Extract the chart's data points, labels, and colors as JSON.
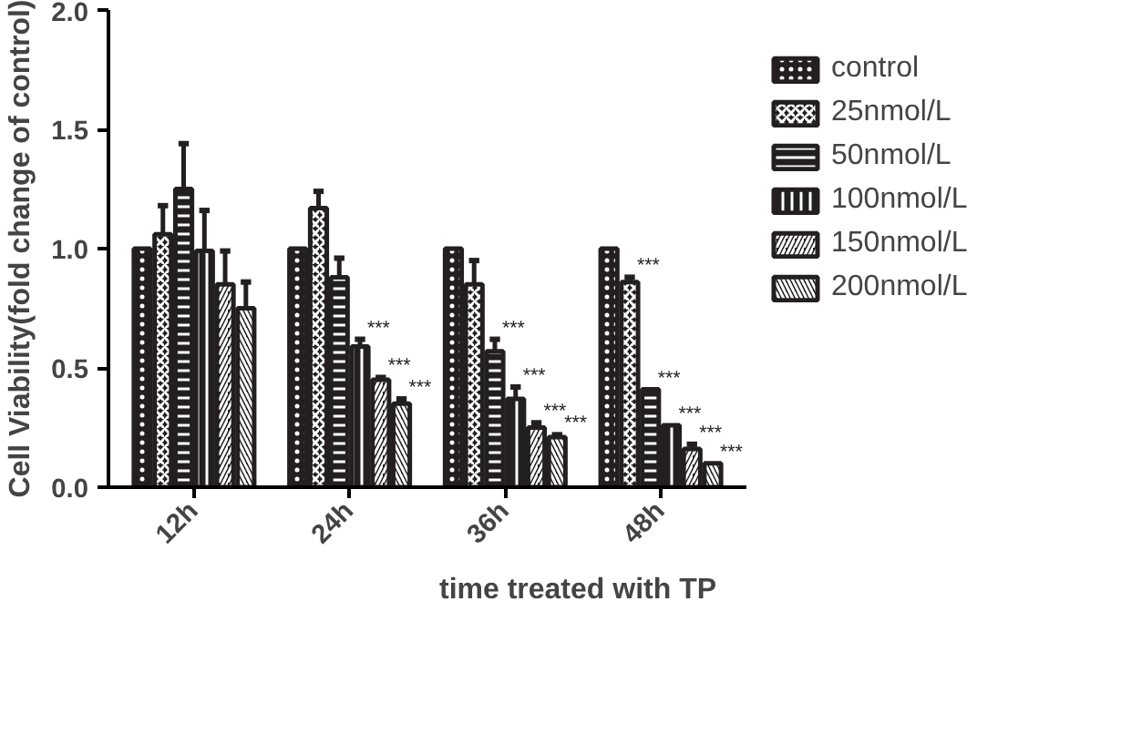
{
  "chart_data": {
    "type": "bar",
    "xlabel": "time treated with TP",
    "ylabel": "Cell Viability(fold change of control)",
    "categories": [
      "12h",
      "24h",
      "36h",
      "48h"
    ],
    "series": [
      {
        "name": "control",
        "color": "#231f20",
        "values": [
          1.0,
          1.0,
          1.0,
          1.0
        ]
      },
      {
        "name": "25nmol/L",
        "color": "#231f20",
        "values": [
          1.06,
          1.17,
          0.85,
          0.86
        ],
        "errors": [
          0.12,
          0.07,
          0.1,
          0.02
        ],
        "value_labels": [
          null,
          null,
          null,
          "***"
        ]
      },
      {
        "name": "50nmol/L",
        "color": "#231f20",
        "values": [
          1.25,
          0.88,
          0.57,
          0.41
        ],
        "errors": [
          0.19,
          0.08,
          0.05,
          null
        ],
        "value_labels": [
          null,
          null,
          "***",
          "***"
        ]
      },
      {
        "name": "100nmol/L",
        "color": "#231f20",
        "values": [
          0.99,
          0.59,
          0.37,
          0.26
        ],
        "errors": [
          0.17,
          0.03,
          0.05,
          null
        ],
        "value_labels": [
          null,
          "***",
          "***",
          "***"
        ]
      },
      {
        "name": "150nmol/L",
        "color": "#231f20",
        "values": [
          0.85,
          0.45,
          0.25,
          0.16
        ],
        "errors": [
          0.14,
          0.01,
          0.02,
          0.02
        ],
        "value_labels": [
          null,
          "***",
          "***",
          "***"
        ]
      },
      {
        "name": "200nmol/L",
        "color": "#231f20",
        "values": [
          0.75,
          0.35,
          0.21,
          0.1
        ],
        "errors": [
          0.11,
          0.02,
          0.01,
          null
        ],
        "value_labels": [
          null,
          "***",
          "***",
          "***"
        ]
      }
    ],
    "ylim": [
      0,
      2
    ],
    "yticks": [
      {
        "value": 0,
        "label": "0.0"
      },
      {
        "value": 0.5,
        "label": "0.5"
      },
      {
        "value": 1,
        "label": "1.0"
      },
      {
        "value": 1.5,
        "label": "1.5"
      },
      {
        "value": 2,
        "label": "2.0"
      }
    ],
    "grid": false,
    "legend": "right"
  }
}
